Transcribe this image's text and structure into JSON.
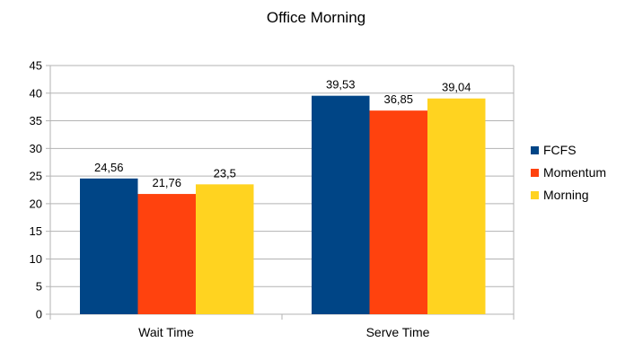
{
  "chart_data": {
    "type": "bar",
    "title": "Office Morning",
    "xlabel": "",
    "ylabel": "",
    "categories": [
      "Wait Time",
      "Serve Time"
    ],
    "series": [
      {
        "name": "FCFS",
        "values": [
          24.56,
          39.53
        ],
        "labels": [
          "24,56",
          "39,53"
        ],
        "color": "#004586"
      },
      {
        "name": "Momentum",
        "values": [
          21.76,
          36.85
        ],
        "labels": [
          "21,76",
          "36,85"
        ],
        "color": "#ff420e"
      },
      {
        "name": "Morning",
        "values": [
          23.5,
          39.04
        ],
        "labels": [
          "23,5",
          "39,04"
        ],
        "color": "#ffd320"
      }
    ],
    "ylim": [
      0,
      45
    ],
    "yticks": [
      0,
      5,
      10,
      15,
      20,
      25,
      30,
      35,
      40,
      45
    ],
    "grid": true,
    "legend_position": "right"
  }
}
